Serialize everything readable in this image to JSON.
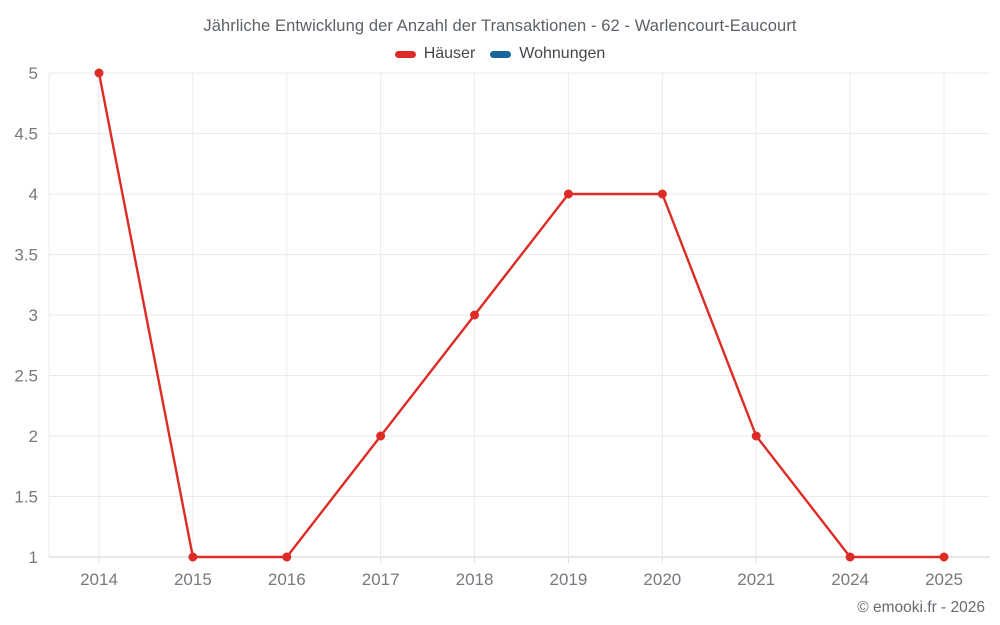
{
  "chart_data": {
    "type": "line",
    "title": "Jährliche Entwicklung der Anzahl der Transaktionen - 62 - Warlencourt-Eaucourt",
    "categories": [
      "2014",
      "2015",
      "2016",
      "2017",
      "2018",
      "2019",
      "2020",
      "2021",
      "2024",
      "2025"
    ],
    "series": [
      {
        "name": "Häuser",
        "color": "#dd2c26",
        "values": [
          5,
          1,
          1,
          2,
          3,
          4,
          4,
          2,
          1,
          1
        ]
      },
      {
        "name": "Wohnungen",
        "color": "#15659e",
        "values": []
      }
    ],
    "xlabel": "",
    "ylabel": "",
    "ylim": [
      1,
      5
    ],
    "ytick_step": 0.5,
    "ytick_labels": [
      "1",
      "1.5",
      "2",
      "2.5",
      "3",
      "3.5",
      "4",
      "4.5",
      "5"
    ],
    "grid": true,
    "legend_position": "top",
    "colors": {
      "grid_line": "#ebebeb",
      "axis_line": "#d2d2d2",
      "tick_mark": "#dcdcdc",
      "tick_label": "#76797e",
      "title_text": "#5c6167",
      "legend_text": "#44484c",
      "background": "#ffffff"
    }
  },
  "footer": {
    "credit": "© emooki.fr - 2026"
  }
}
